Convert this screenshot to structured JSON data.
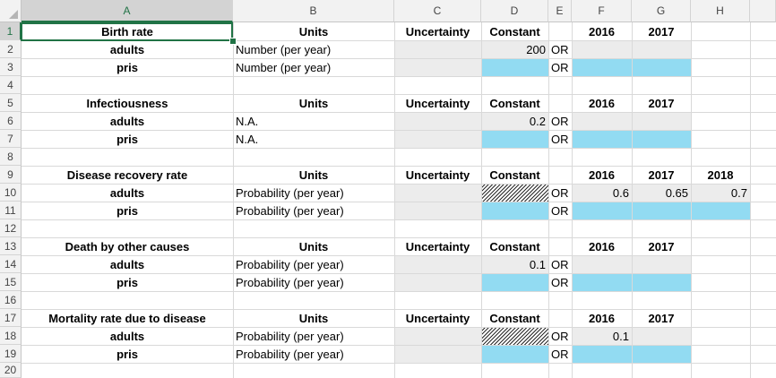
{
  "columns": [
    "A",
    "B",
    "C",
    "D",
    "E",
    "F",
    "G",
    "H"
  ],
  "rows": [
    "1",
    "2",
    "3",
    "4",
    "5",
    "6",
    "7",
    "8",
    "9",
    "10",
    "11",
    "12",
    "13",
    "14",
    "15",
    "16",
    "17",
    "18",
    "19",
    "20"
  ],
  "tables": {
    "birth": {
      "title": "Birth rate",
      "units": "Units",
      "uncertainty": "Uncertainty",
      "constant": "Constant",
      "y2016": "2016",
      "y2017": "2017",
      "adults": "adults",
      "adults_units": "Number (per year)",
      "adults_constant": "200",
      "adults_or": "OR",
      "pris": "pris",
      "pris_units": "Number (per year)",
      "pris_or": "OR"
    },
    "infect": {
      "title": "Infectiousness",
      "units": "Units",
      "uncertainty": "Uncertainty",
      "constant": "Constant",
      "y2016": "2016",
      "y2017": "2017",
      "adults": "adults",
      "adults_units": "N.A.",
      "adults_constant": "0.2",
      "adults_or": "OR",
      "pris": "pris",
      "pris_units": "N.A.",
      "pris_or": "OR"
    },
    "recovery": {
      "title": "Disease recovery rate",
      "units": "Units",
      "uncertainty": "Uncertainty",
      "constant": "Constant",
      "y2016": "2016",
      "y2017": "2017",
      "y2018": "2018",
      "adults": "adults",
      "adults_units": "Probability (per year)",
      "adults_or": "OR",
      "adults_2016": "0.6",
      "adults_2017": "0.65",
      "adults_2018": "0.7",
      "pris": "pris",
      "pris_units": "Probability (per year)",
      "pris_or": "OR"
    },
    "death": {
      "title": "Death by other causes",
      "units": "Units",
      "uncertainty": "Uncertainty",
      "constant": "Constant",
      "y2016": "2016",
      "y2017": "2017",
      "adults": "adults",
      "adults_units": "Probability (per year)",
      "adults_constant": "0.1",
      "adults_or": "OR",
      "pris": "pris",
      "pris_units": "Probability (per year)",
      "pris_or": "OR"
    },
    "mortality": {
      "title": "Mortality rate due to disease",
      "units": "Units",
      "uncertainty": "Uncertainty",
      "constant": "Constant",
      "y2016": "2016",
      "y2017": "2017",
      "adults": "adults",
      "adults_units": "Probability (per year)",
      "adults_or": "OR",
      "adults_2016": "0.1",
      "pris": "pris",
      "pris_units": "Probability (per year)",
      "pris_or": "OR"
    }
  },
  "colors": {
    "accent": "#217346",
    "input_blue": "#92dbf2",
    "locked_grey": "#ececec"
  }
}
